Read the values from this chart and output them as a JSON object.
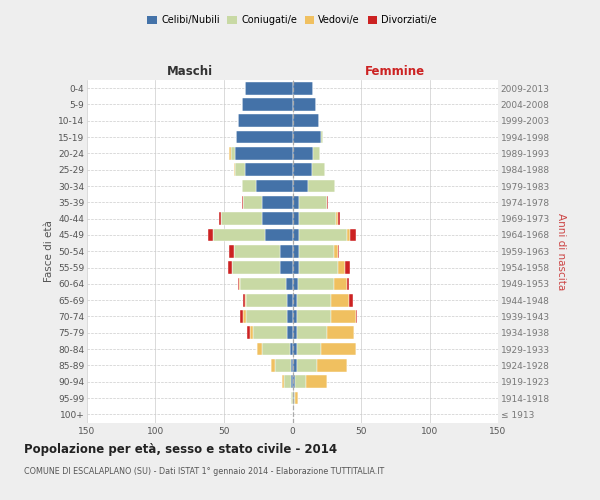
{
  "age_groups": [
    "100+",
    "95-99",
    "90-94",
    "85-89",
    "80-84",
    "75-79",
    "70-74",
    "65-69",
    "60-64",
    "55-59",
    "50-54",
    "45-49",
    "40-44",
    "35-39",
    "30-34",
    "25-29",
    "20-24",
    "15-19",
    "10-14",
    "5-9",
    "0-4"
  ],
  "birth_years": [
    "≤ 1913",
    "1914-1918",
    "1919-1923",
    "1924-1928",
    "1929-1933",
    "1934-1938",
    "1939-1943",
    "1944-1948",
    "1949-1953",
    "1954-1958",
    "1959-1963",
    "1964-1968",
    "1969-1973",
    "1974-1978",
    "1979-1983",
    "1984-1988",
    "1989-1993",
    "1994-1998",
    "1999-2003",
    "2004-2008",
    "2009-2013"
  ],
  "male_celibe": [
    0,
    0,
    1,
    1,
    2,
    4,
    4,
    4,
    5,
    9,
    9,
    20,
    22,
    22,
    27,
    35,
    42,
    41,
    40,
    37,
    35
  ],
  "male_coniugato": [
    0,
    1,
    5,
    12,
    20,
    25,
    30,
    30,
    33,
    35,
    34,
    38,
    30,
    14,
    10,
    7,
    3,
    0,
    0,
    0,
    0
  ],
  "male_vedovo": [
    0,
    0,
    2,
    3,
    4,
    2,
    2,
    1,
    1,
    0,
    0,
    0,
    0,
    0,
    0,
    1,
    1,
    0,
    0,
    0,
    0
  ],
  "male_divorziato": [
    0,
    0,
    0,
    0,
    0,
    2,
    2,
    1,
    1,
    3,
    3,
    4,
    2,
    1,
    0,
    0,
    0,
    0,
    0,
    0,
    0
  ],
  "female_nubile": [
    0,
    1,
    2,
    3,
    3,
    3,
    3,
    3,
    4,
    5,
    5,
    5,
    5,
    5,
    11,
    14,
    15,
    21,
    19,
    17,
    15
  ],
  "female_coniugata": [
    0,
    1,
    8,
    15,
    18,
    22,
    25,
    25,
    26,
    28,
    25,
    35,
    27,
    20,
    20,
    10,
    5,
    1,
    0,
    0,
    0
  ],
  "female_vedova": [
    0,
    2,
    15,
    22,
    25,
    20,
    18,
    13,
    10,
    5,
    3,
    2,
    1,
    0,
    0,
    0,
    0,
    0,
    0,
    0,
    0
  ],
  "female_divorziata": [
    0,
    0,
    0,
    0,
    0,
    0,
    1,
    3,
    1,
    4,
    1,
    4,
    2,
    1,
    0,
    0,
    0,
    0,
    0,
    0,
    0
  ],
  "color_celibe": "#4472a8",
  "color_coniugato": "#c8d9a4",
  "color_vedovo": "#f0c060",
  "color_divorziato": "#cc2222",
  "xlim": 150,
  "title": "Popolazione per età, sesso e stato civile - 2014",
  "subtitle": "COMUNE DI ESCALAPLANO (SU) - Dati ISTAT 1° gennaio 2014 - Elaborazione TUTTITALIA.IT",
  "label_maschi": "Maschi",
  "label_femmine": "Femmine",
  "ylabel_left": "Fasce di età",
  "ylabel_right": "Anni di nascita",
  "bg_color": "#eeeeee",
  "plot_bg": "#ffffff",
  "grid_color": "#cccccc"
}
